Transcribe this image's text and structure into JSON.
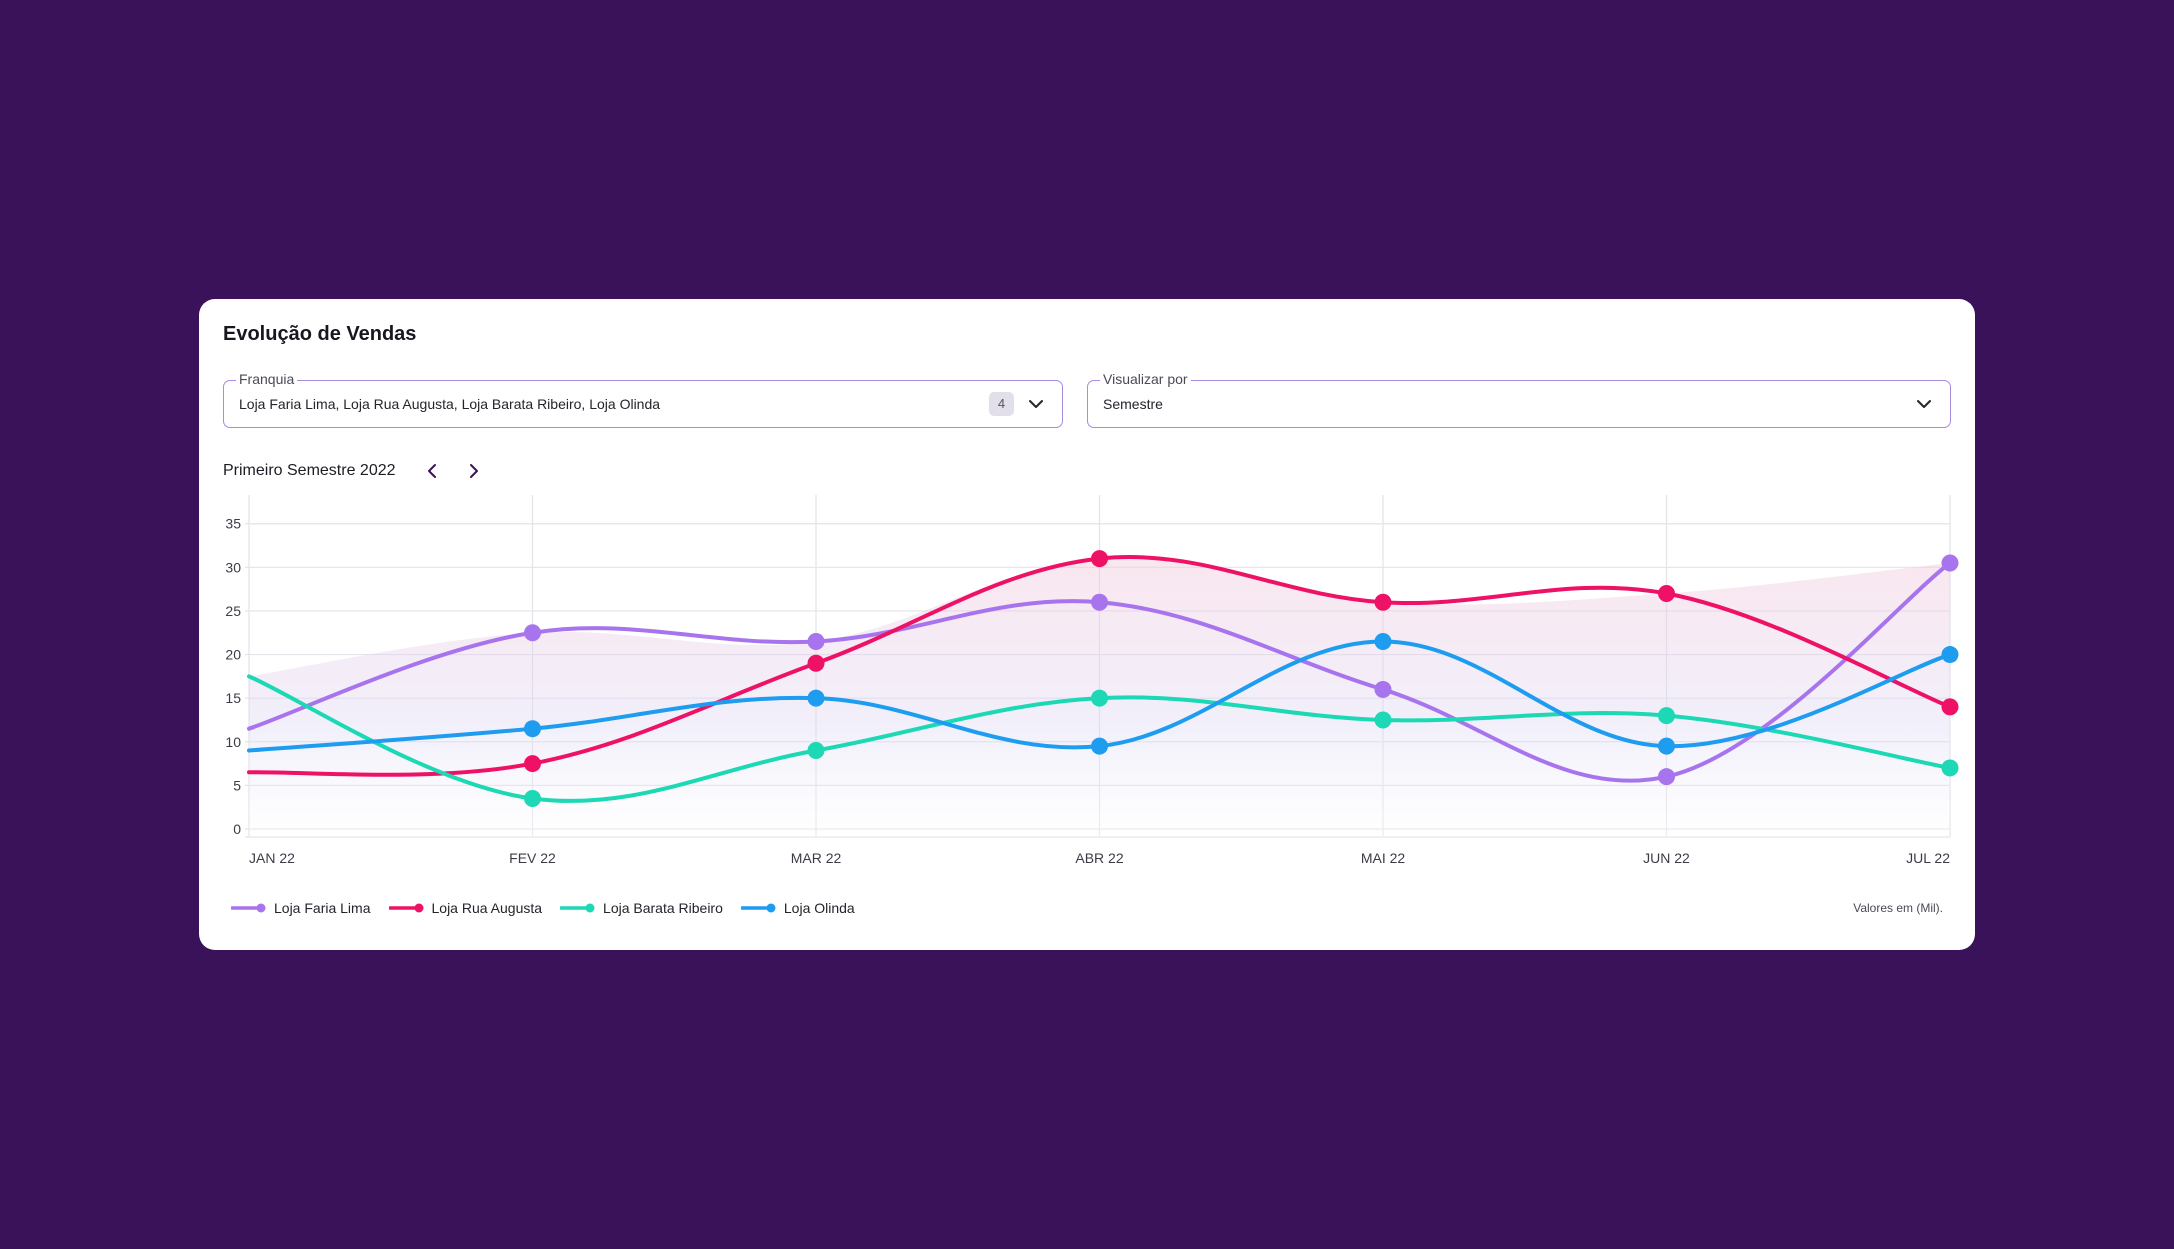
{
  "card": {
    "title": "Evolução de Vendas"
  },
  "filters": {
    "franquia": {
      "label": "Franquia",
      "value": "Loja Faria Lima, Loja Rua Augusta, Loja Barata Ribeiro, Loja Olinda",
      "count": "4",
      "icon": "chevron-down-icon"
    },
    "visualizar": {
      "label": "Visualizar por",
      "value": "Semestre",
      "icon": "chevron-down-icon"
    }
  },
  "period": {
    "label": "Primeiro Semestre 2022",
    "prev_icon": "chevron-left-icon",
    "next_icon": "chevron-right-icon"
  },
  "units_note": "Valores em (Mil).",
  "chart_data": {
    "type": "line",
    "title": "Evolução de Vendas",
    "xlabel": "",
    "ylabel": "",
    "categories": [
      "JAN 22",
      "FEV 22",
      "MAR 22",
      "ABR 22",
      "MAI 22",
      "JUN 22",
      "JUL 22"
    ],
    "y_ticks": [
      0,
      5,
      10,
      15,
      20,
      25,
      30,
      35
    ],
    "ylim": [
      0,
      36
    ],
    "grid": true,
    "legend_position": "bottom-left",
    "series": [
      {
        "name": "Loja Faria Lima",
        "color": "#a874ee",
        "values": [
          11.5,
          22.5,
          21.5,
          26,
          16,
          6,
          30.5
        ],
        "first_marker": false
      },
      {
        "name": "Loja Rua Augusta",
        "color": "#ee1266",
        "values": [
          6.5,
          7.5,
          19,
          31,
          26,
          27,
          14
        ],
        "first_marker": false
      },
      {
        "name": "Loja Barata Ribeiro",
        "color": "#1cd8b4",
        "values": [
          17.5,
          3.5,
          9,
          15,
          12.5,
          13,
          7
        ],
        "first_marker": false
      },
      {
        "name": "Loja Olinda",
        "color": "#1e9cf0",
        "values": [
          9,
          11.5,
          15,
          9.5,
          21.5,
          9.5,
          20
        ],
        "first_marker": false
      }
    ]
  }
}
